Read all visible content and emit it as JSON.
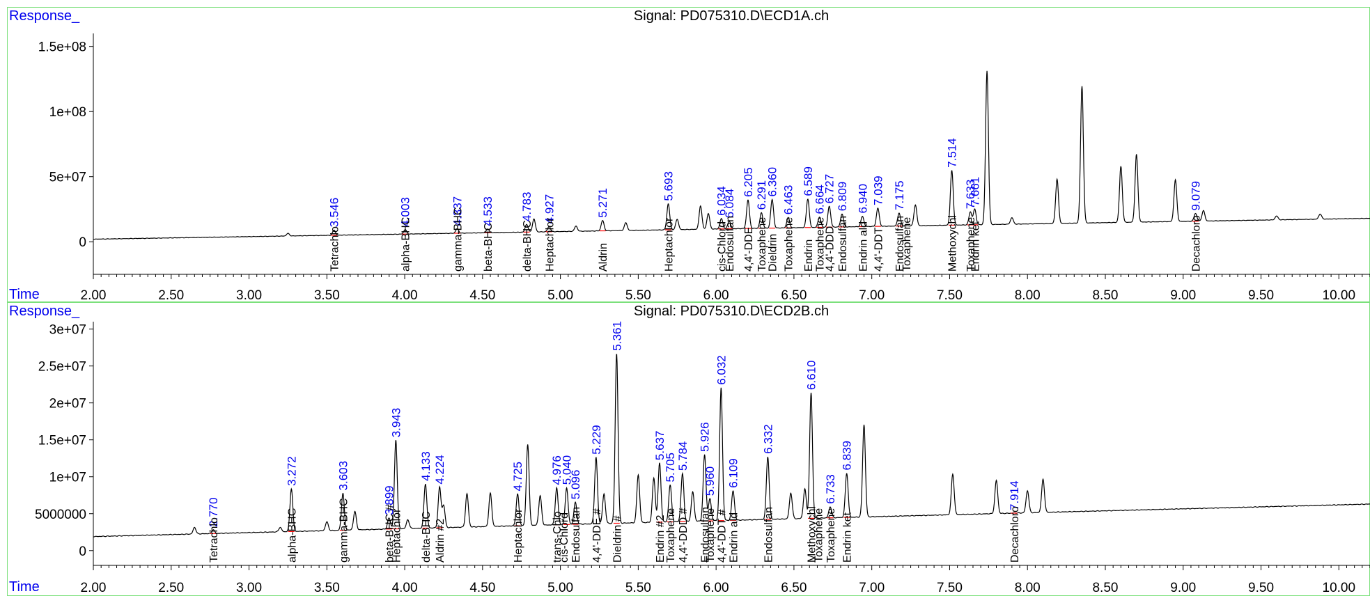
{
  "chart_data": [
    {
      "type": "line",
      "title": "Signal: PD075310.D\\ECD1A.ch",
      "ylabel": "Response_",
      "xlabel": "Time",
      "xlim": [
        2.0,
        10.2
      ],
      "ylim": [
        -25000000,
        160000000
      ],
      "x_ticks": [
        2.0,
        2.5,
        3.0,
        3.5,
        4.0,
        4.5,
        5.0,
        5.5,
        6.0,
        6.5,
        7.0,
        7.5,
        8.0,
        8.5,
        9.0,
        9.5,
        10.0
      ],
      "x_tick_labels": [
        "2.00",
        "2.50",
        "3.00",
        "3.50",
        "4.00",
        "4.50",
        "5.00",
        "5.50",
        "6.00",
        "6.50",
        "7.00",
        "7.50",
        "8.00",
        "8.50",
        "9.00",
        "9.50",
        "10.00"
      ],
      "y_ticks": [
        0,
        50000000,
        100000000,
        150000000
      ],
      "y_tick_labels": [
        "0",
        "5e+07",
        "1e+08",
        "1.5e+08"
      ],
      "baseline": {
        "start": 2000000,
        "end": 18000000
      },
      "peaks": [
        {
          "rt": 3.25,
          "h": 2000000
        },
        {
          "rt": 3.546,
          "h": 4000000
        },
        {
          "rt": 4.003,
          "h": 3500000
        },
        {
          "rt": 4.337,
          "h": 3500000
        },
        {
          "rt": 4.533,
          "h": 3000000
        },
        {
          "rt": 4.783,
          "h": 6000000
        },
        {
          "rt": 4.83,
          "h": 10000000
        },
        {
          "rt": 4.927,
          "h": 4000000
        },
        {
          "rt": 5.1,
          "h": 4000000
        },
        {
          "rt": 5.271,
          "h": 8000000
        },
        {
          "rt": 5.42,
          "h": 6000000
        },
        {
          "rt": 5.693,
          "h": 20000000
        },
        {
          "rt": 5.75,
          "h": 8000000
        },
        {
          "rt": 5.9,
          "h": 18000000
        },
        {
          "rt": 5.95,
          "h": 12000000
        },
        {
          "rt": 6.034,
          "h": 8000000
        },
        {
          "rt": 6.084,
          "h": 6000000
        },
        {
          "rt": 6.205,
          "h": 22000000
        },
        {
          "rt": 6.291,
          "h": 12000000
        },
        {
          "rt": 6.36,
          "h": 22000000
        },
        {
          "rt": 6.463,
          "h": 8000000
        },
        {
          "rt": 6.589,
          "h": 22000000
        },
        {
          "rt": 6.664,
          "h": 8000000
        },
        {
          "rt": 6.727,
          "h": 16000000
        },
        {
          "rt": 6.809,
          "h": 10000000
        },
        {
          "rt": 6.94,
          "h": 8000000
        },
        {
          "rt": 7.039,
          "h": 14000000
        },
        {
          "rt": 7.175,
          "h": 10000000
        },
        {
          "rt": 7.28,
          "h": 16000000
        },
        {
          "rt": 7.514,
          "h": 42000000
        },
        {
          "rt": 7.633,
          "h": 10000000
        },
        {
          "rt": 7.661,
          "h": 12000000
        },
        {
          "rt": 7.74,
          "h": 118000000
        },
        {
          "rt": 7.9,
          "h": 5000000
        },
        {
          "rt": 8.19,
          "h": 34000000
        },
        {
          "rt": 8.35,
          "h": 105000000
        },
        {
          "rt": 8.6,
          "h": 43000000
        },
        {
          "rt": 8.7,
          "h": 52000000
        },
        {
          "rt": 8.95,
          "h": 32000000
        },
        {
          "rt": 9.079,
          "h": 6000000
        },
        {
          "rt": 9.13,
          "h": 8000000
        },
        {
          "rt": 9.6,
          "h": 3000000
        },
        {
          "rt": 9.88,
          "h": 4000000
        }
      ],
      "rt_labels": [
        {
          "rt": 3.546,
          "text": "3.546"
        },
        {
          "rt": 4.003,
          "text": "4.003"
        },
        {
          "rt": 4.337,
          "text": "4.337"
        },
        {
          "rt": 4.533,
          "text": "4.533"
        },
        {
          "rt": 4.783,
          "text": "4.783"
        },
        {
          "rt": 4.927,
          "text": "4.927"
        },
        {
          "rt": 5.271,
          "text": "5.271"
        },
        {
          "rt": 5.693,
          "text": "5.693"
        },
        {
          "rt": 6.034,
          "text": "6.034"
        },
        {
          "rt": 6.084,
          "text": "6.084"
        },
        {
          "rt": 6.205,
          "text": "6.205"
        },
        {
          "rt": 6.291,
          "text": "6.291"
        },
        {
          "rt": 6.36,
          "text": "6.360"
        },
        {
          "rt": 6.463,
          "text": "6.463"
        },
        {
          "rt": 6.589,
          "text": "6.589"
        },
        {
          "rt": 6.664,
          "text": "6.664"
        },
        {
          "rt": 6.727,
          "text": "6.727"
        },
        {
          "rt": 6.809,
          "text": "6.809"
        },
        {
          "rt": 6.94,
          "text": "6.940"
        },
        {
          "rt": 7.039,
          "text": "7.039"
        },
        {
          "rt": 7.175,
          "text": "7.175"
        },
        {
          "rt": 7.514,
          "text": "7.514"
        },
        {
          "rt": 7.633,
          "text": "7.633"
        },
        {
          "rt": 7.661,
          "text": "7.661"
        },
        {
          "rt": 9.079,
          "text": "9.079"
        }
      ],
      "compound_labels": [
        {
          "rt": 3.546,
          "text": "Tetrachlo"
        },
        {
          "rt": 4.003,
          "text": "alpha-BHC"
        },
        {
          "rt": 4.337,
          "text": "gamma-BHC"
        },
        {
          "rt": 4.533,
          "text": "beta-BHC"
        },
        {
          "rt": 4.783,
          "text": "delta-BHC"
        },
        {
          "rt": 4.927,
          "text": "Heptachlor"
        },
        {
          "rt": 5.271,
          "text": "Aldrin"
        },
        {
          "rt": 5.693,
          "text": "Heptachlor"
        },
        {
          "rt": 6.034,
          "text": "cis-Chlord"
        },
        {
          "rt": 6.084,
          "text": "Endosulfan"
        },
        {
          "rt": 6.205,
          "text": "4,4'-DDE"
        },
        {
          "rt": 6.291,
          "text": "Toxaphene"
        },
        {
          "rt": 6.36,
          "text": "Dieldrin"
        },
        {
          "rt": 6.463,
          "text": "Toxaphene"
        },
        {
          "rt": 6.589,
          "text": "Endrin"
        },
        {
          "rt": 6.664,
          "text": "Toxaphene"
        },
        {
          "rt": 6.727,
          "text": "4,4'-DDD"
        },
        {
          "rt": 6.809,
          "text": "Endosulfan"
        },
        {
          "rt": 6.94,
          "text": "Endrin ald"
        },
        {
          "rt": 7.039,
          "text": "4,4'-DDT"
        },
        {
          "rt": 7.175,
          "text": "Endosulfan"
        },
        {
          "rt": 7.175,
          "text": "Toxaphene"
        },
        {
          "rt": 7.514,
          "text": "Methoxychl"
        },
        {
          "rt": 7.633,
          "text": "Toxaphene"
        },
        {
          "rt": 7.661,
          "text": "Endrin ket"
        },
        {
          "rt": 9.079,
          "text": "Decachloro"
        }
      ]
    },
    {
      "type": "line",
      "title": "Signal: PD075310.D\\ECD2B.ch",
      "ylabel": "Response_",
      "xlabel": "Time",
      "xlim": [
        2.0,
        10.2
      ],
      "ylim": [
        -2000000,
        31000000
      ],
      "x_ticks": [
        2.0,
        2.5,
        3.0,
        3.5,
        4.0,
        4.5,
        5.0,
        5.5,
        6.0,
        6.5,
        7.0,
        7.5,
        8.0,
        8.5,
        9.0,
        9.5,
        10.0
      ],
      "x_tick_labels": [
        "2.00",
        "2.50",
        "3.00",
        "3.50",
        "4.00",
        "4.50",
        "5.00",
        "5.50",
        "6.00",
        "6.50",
        "7.00",
        "7.50",
        "8.00",
        "8.50",
        "9.00",
        "9.50",
        "10.00"
      ],
      "y_ticks": [
        0,
        5000000,
        10000000,
        15000000,
        20000000,
        25000000,
        30000000
      ],
      "y_tick_labels": [
        "0",
        "5000000",
        "1e+07",
        "1.5e+07",
        "2e+07",
        "2.5e+07",
        "3e+07"
      ],
      "baseline": {
        "start": 1900000,
        "end": 6300000
      },
      "peaks": [
        {
          "rt": 2.65,
          "h": 900000
        },
        {
          "rt": 2.77,
          "h": 500000
        },
        {
          "rt": 3.2,
          "h": 600000
        },
        {
          "rt": 3.272,
          "h": 5800000
        },
        {
          "rt": 3.5,
          "h": 1200000
        },
        {
          "rt": 3.603,
          "h": 5000000
        },
        {
          "rt": 3.68,
          "h": 2500000
        },
        {
          "rt": 3.899,
          "h": 1500000
        },
        {
          "rt": 3.943,
          "h": 12000000
        },
        {
          "rt": 4.02,
          "h": 1200000
        },
        {
          "rt": 4.133,
          "h": 6000000
        },
        {
          "rt": 4.224,
          "h": 5500000
        },
        {
          "rt": 4.25,
          "h": 3000000
        },
        {
          "rt": 4.4,
          "h": 4500000
        },
        {
          "rt": 4.55,
          "h": 4500000
        },
        {
          "rt": 4.725,
          "h": 4300000
        },
        {
          "rt": 4.79,
          "h": 11000000
        },
        {
          "rt": 4.87,
          "h": 4000000
        },
        {
          "rt": 4.976,
          "h": 5000000
        },
        {
          "rt": 5.04,
          "h": 5000000
        },
        {
          "rt": 5.096,
          "h": 3000000
        },
        {
          "rt": 5.229,
          "h": 9000000
        },
        {
          "rt": 5.28,
          "h": 4000000
        },
        {
          "rt": 5.361,
          "h": 23000000
        },
        {
          "rt": 5.5,
          "h": 6500000
        },
        {
          "rt": 5.6,
          "h": 6000000
        },
        {
          "rt": 5.637,
          "h": 8000000
        },
        {
          "rt": 5.705,
          "h": 5000000
        },
        {
          "rt": 5.784,
          "h": 6500000
        },
        {
          "rt": 5.85,
          "h": 4000000
        },
        {
          "rt": 5.926,
          "h": 9000000
        },
        {
          "rt": 5.96,
          "h": 3000000
        },
        {
          "rt": 6.032,
          "h": 18000000
        },
        {
          "rt": 6.109,
          "h": 4000000
        },
        {
          "rt": 6.332,
          "h": 8500000
        },
        {
          "rt": 6.48,
          "h": 3500000
        },
        {
          "rt": 6.57,
          "h": 4000000
        },
        {
          "rt": 6.61,
          "h": 17000000
        },
        {
          "rt": 6.733,
          "h": 1500000
        },
        {
          "rt": 6.839,
          "h": 6000000
        },
        {
          "rt": 6.95,
          "h": 12500000
        },
        {
          "rt": 7.52,
          "h": 5500000
        },
        {
          "rt": 7.8,
          "h": 4500000
        },
        {
          "rt": 8.0,
          "h": 3000000
        },
        {
          "rt": 8.1,
          "h": 4500000
        }
      ],
      "rt_labels": [
        {
          "rt": 2.77,
          "text": "2.770"
        },
        {
          "rt": 3.272,
          "text": "3.272"
        },
        {
          "rt": 3.603,
          "text": "3.603"
        },
        {
          "rt": 3.899,
          "text": "3.899"
        },
        {
          "rt": 3.943,
          "text": "3.943"
        },
        {
          "rt": 4.133,
          "text": "4.133"
        },
        {
          "rt": 4.224,
          "text": "4.224"
        },
        {
          "rt": 4.725,
          "text": "4.725"
        },
        {
          "rt": 4.976,
          "text": "4.976"
        },
        {
          "rt": 5.04,
          "text": "5.040"
        },
        {
          "rt": 5.096,
          "text": "5.096"
        },
        {
          "rt": 5.229,
          "text": "5.229"
        },
        {
          "rt": 5.361,
          "text": "5.361"
        },
        {
          "rt": 5.637,
          "text": "5.637"
        },
        {
          "rt": 5.705,
          "text": "5.705"
        },
        {
          "rt": 5.784,
          "text": "5.784"
        },
        {
          "rt": 5.926,
          "text": "5.926"
        },
        {
          "rt": 5.96,
          "text": "5.960"
        },
        {
          "rt": 6.032,
          "text": "6.032"
        },
        {
          "rt": 6.109,
          "text": "6.109"
        },
        {
          "rt": 6.332,
          "text": "6.332"
        },
        {
          "rt": 6.61,
          "text": "6.610"
        },
        {
          "rt": 6.733,
          "text": "6.733"
        },
        {
          "rt": 6.839,
          "text": "6.839"
        },
        {
          "rt": 7.914,
          "text": "7.914"
        }
      ],
      "compound_labels": [
        {
          "rt": 2.77,
          "text": "Tetrachlo"
        },
        {
          "rt": 3.272,
          "text": "alpha-BHC"
        },
        {
          "rt": 3.603,
          "text": "gamma-BHC"
        },
        {
          "rt": 3.899,
          "text": "beta-BHC #"
        },
        {
          "rt": 3.943,
          "text": "Heptachlor"
        },
        {
          "rt": 4.133,
          "text": "delta-BHC"
        },
        {
          "rt": 4.224,
          "text": "Aldrin #2"
        },
        {
          "rt": 4.725,
          "text": "Heptachlor"
        },
        {
          "rt": 4.976,
          "text": "trans-Chlo"
        },
        {
          "rt": 5.02,
          "text": "cis-Chlord"
        },
        {
          "rt": 5.096,
          "text": "Endosulfan"
        },
        {
          "rt": 5.229,
          "text": "4,4'-DDE #"
        },
        {
          "rt": 5.361,
          "text": "Dieldrin #"
        },
        {
          "rt": 5.637,
          "text": "Endrin #2"
        },
        {
          "rt": 5.705,
          "text": "Toxaphene"
        },
        {
          "rt": 5.784,
          "text": "4,4'-DDD #"
        },
        {
          "rt": 5.926,
          "text": "Endosulfan"
        },
        {
          "rt": 5.96,
          "text": "Toxaphene"
        },
        {
          "rt": 6.032,
          "text": "4,4'-DDT #"
        },
        {
          "rt": 6.109,
          "text": "Endrin ald"
        },
        {
          "rt": 6.332,
          "text": "Endosulfan"
        },
        {
          "rt": 6.61,
          "text": "Methoxychl"
        },
        {
          "rt": 6.61,
          "text": "Toxaphene"
        },
        {
          "rt": 6.733,
          "text": "Toxaphene"
        },
        {
          "rt": 6.839,
          "text": "Endrin ket"
        },
        {
          "rt": 7.914,
          "text": "Decachloro"
        }
      ]
    }
  ],
  "colors": {
    "trace": "#000000",
    "rt_label": "#0000ee",
    "integration": "#ff0000",
    "frame": "#7be07b"
  }
}
